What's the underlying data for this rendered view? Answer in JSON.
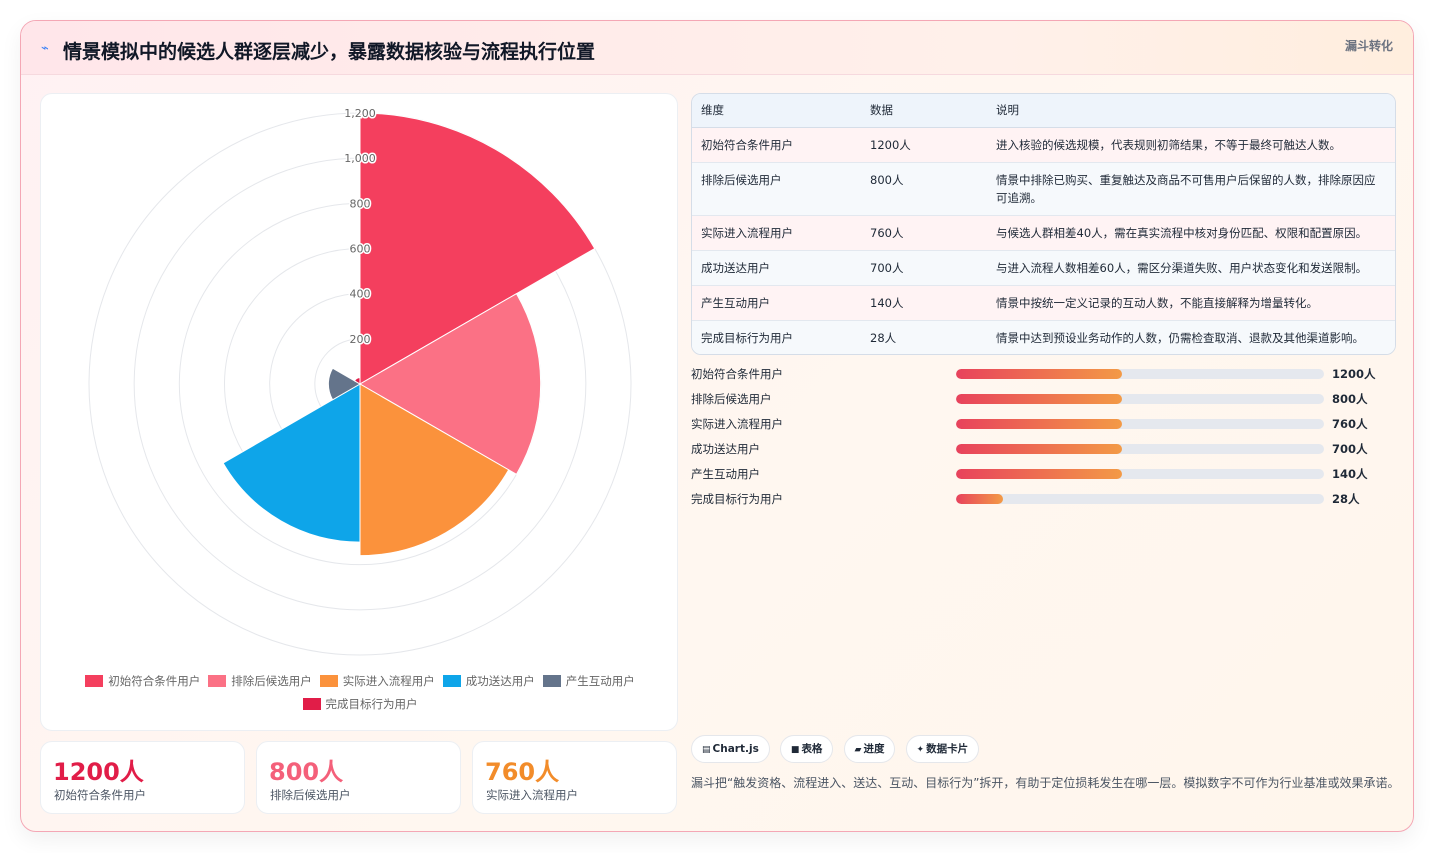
{
  "header": {
    "icon": "lightning-icon",
    "title": "情景模拟中的候选人群逐层减少，暴露数据核验与流程执行位置",
    "tag": "漏斗转化"
  },
  "chart_data": {
    "type": "polarArea",
    "categories": [
      "初始符合条件用户",
      "排除后候选用户",
      "实际进入流程用户",
      "成功送达用户",
      "产生互动用户",
      "完成目标行为用户"
    ],
    "values": [
      1200,
      800,
      760,
      700,
      140,
      28
    ],
    "colors": [
      "#f43f5e",
      "#fb7185",
      "#fb923c",
      "#0ea5e9",
      "#64748b",
      "#e11d48"
    ],
    "ylim": [
      0,
      1200
    ],
    "ticks": [
      200,
      400,
      600,
      800,
      1000,
      1200
    ],
    "tick_labels": [
      "200",
      "400",
      "600",
      "800",
      "1,000",
      "1,200"
    ],
    "grid": true,
    "legend_position": "bottom"
  },
  "kpis": [
    {
      "value": "1200人",
      "label": "初始符合条件用户",
      "color": "#e11d48"
    },
    {
      "value": "800人",
      "label": "排除后候选用户",
      "color": "#f4607a"
    },
    {
      "value": "760人",
      "label": "实际进入流程用户",
      "color": "#f28c2a"
    }
  ],
  "table": {
    "headers": [
      "维度",
      "数据",
      "说明"
    ],
    "rows": [
      {
        "dim": "初始符合条件用户",
        "data": "1200人",
        "desc": "进入核验的候选规模，代表规则初筛结果，不等于最终可触达人数。"
      },
      {
        "dim": "排除后候选用户",
        "data": "800人",
        "desc": "情景中排除已购买、重复触达及商品不可售用户后保留的人数，排除原因应可追溯。"
      },
      {
        "dim": "实际进入流程用户",
        "data": "760人",
        "desc": "与候选人群相差40人，需在真实流程中核对身份匹配、权限和配置原因。"
      },
      {
        "dim": "成功送达用户",
        "data": "700人",
        "desc": "与进入流程人数相差60人，需区分渠道失败、用户状态变化和发送限制。"
      },
      {
        "dim": "产生互动用户",
        "data": "140人",
        "desc": "情景中按统一定义记录的互动人数，不能直接解释为增量转化。"
      },
      {
        "dim": "完成目标行为用户",
        "data": "28人",
        "desc": "情景中达到预设业务动作的人数，仍需检查取消、退款及其他渠道影响。"
      }
    ]
  },
  "progress": [
    {
      "label": "初始符合条件用户",
      "value": "1200人",
      "fill": 0.45
    },
    {
      "label": "排除后候选用户",
      "value": "800人",
      "fill": 0.45
    },
    {
      "label": "实际进入流程用户",
      "value": "760人",
      "fill": 0.45
    },
    {
      "label": "成功送达用户",
      "value": "700人",
      "fill": 0.45
    },
    {
      "label": "产生互动用户",
      "value": "140人",
      "fill": 0.45
    },
    {
      "label": "完成目标行为用户",
      "value": "28人",
      "fill": 0.127
    }
  ],
  "chips": [
    {
      "icon": "▤",
      "label": "Chart.js"
    },
    {
      "icon": "■",
      "label": "表格"
    },
    {
      "icon": "▰",
      "label": "进度"
    },
    {
      "icon": "✦",
      "label": "数据卡片"
    }
  ],
  "note": "漏斗把“触发资格、流程进入、送达、互动、目标行为”拆开，有助于定位损耗发生在哪一层。模拟数字不可作为行业基准或效果承诺。"
}
